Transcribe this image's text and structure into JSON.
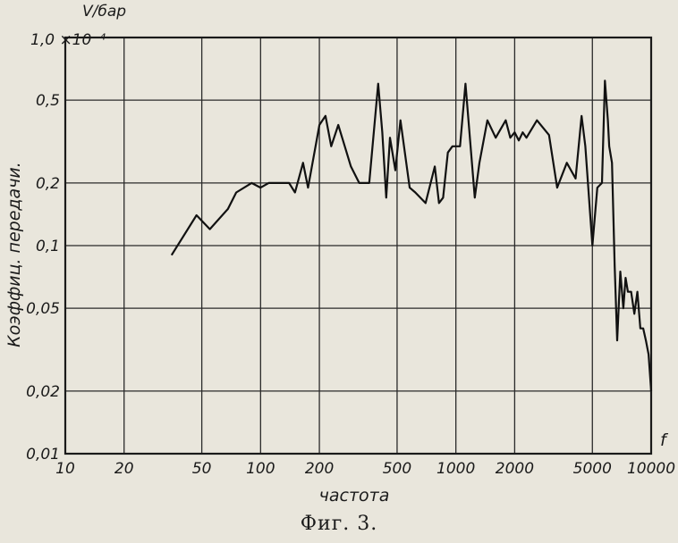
{
  "chart_data": {
    "type": "line",
    "xlabel": "частота",
    "ylabel": "Коэффиц. передачи.",
    "x_axis_symbol": "f",
    "y_unit": "V/бар",
    "y_top_label": "1,0 ×10⁻⁴",
    "caption": "Фиг. 3.",
    "x_scale": "log",
    "y_scale": "log",
    "xlim": [
      10,
      10000
    ],
    "ylim": [
      0.01,
      1.0
    ],
    "x_ticks": [
      10,
      20,
      50,
      100,
      200,
      500,
      1000,
      2000,
      5000,
      10000
    ],
    "x_tick_labels": [
      "10",
      "20",
      "50",
      "100",
      "200",
      "500",
      "1000",
      "2000",
      "5000",
      "10000"
    ],
    "y_ticks": [
      0.01,
      0.02,
      0.05,
      0.1,
      0.2,
      0.5
    ],
    "y_tick_labels": [
      "0,01",
      "0,02",
      "0,05",
      "0,1",
      "0,2",
      "0,5"
    ],
    "grid": true,
    "series": [
      {
        "x": [
          35,
          47,
          55,
          68,
          75,
          90,
          100,
          110,
          140,
          150,
          165,
          175,
          180,
          200,
          215,
          230,
          250,
          290,
          320,
          360,
          400,
          420,
          440,
          460,
          490,
          520,
          580,
          620,
          700,
          780,
          820,
          860,
          910,
          960,
          1050,
          1120,
          1250,
          1320,
          1450,
          1600,
          1800,
          1900,
          2000,
          2100,
          2200,
          2300,
          2600,
          3000,
          3300,
          3700,
          4100,
          4400,
          4600,
          5000,
          5300,
          5600,
          5800,
          6000,
          6100,
          6300,
          6500,
          6700,
          6950,
          7200,
          7400,
          7600,
          7900,
          8200,
          8500,
          8800,
          9100,
          9400,
          9700,
          10000
        ],
        "y": [
          0.09,
          0.14,
          0.12,
          0.15,
          0.18,
          0.2,
          0.19,
          0.2,
          0.2,
          0.18,
          0.25,
          0.19,
          0.22,
          0.38,
          0.42,
          0.3,
          0.38,
          0.24,
          0.2,
          0.2,
          0.6,
          0.35,
          0.17,
          0.33,
          0.23,
          0.4,
          0.19,
          0.18,
          0.16,
          0.24,
          0.16,
          0.17,
          0.28,
          0.3,
          0.3,
          0.6,
          0.17,
          0.25,
          0.4,
          0.33,
          0.4,
          0.33,
          0.35,
          0.32,
          0.35,
          0.33,
          0.4,
          0.34,
          0.19,
          0.25,
          0.21,
          0.42,
          0.3,
          0.1,
          0.19,
          0.2,
          0.62,
          0.4,
          0.3,
          0.25,
          0.08,
          0.035,
          0.075,
          0.05,
          0.07,
          0.06,
          0.06,
          0.047,
          0.06,
          0.04,
          0.04,
          0.035,
          0.03,
          0.02
        ]
      }
    ]
  }
}
